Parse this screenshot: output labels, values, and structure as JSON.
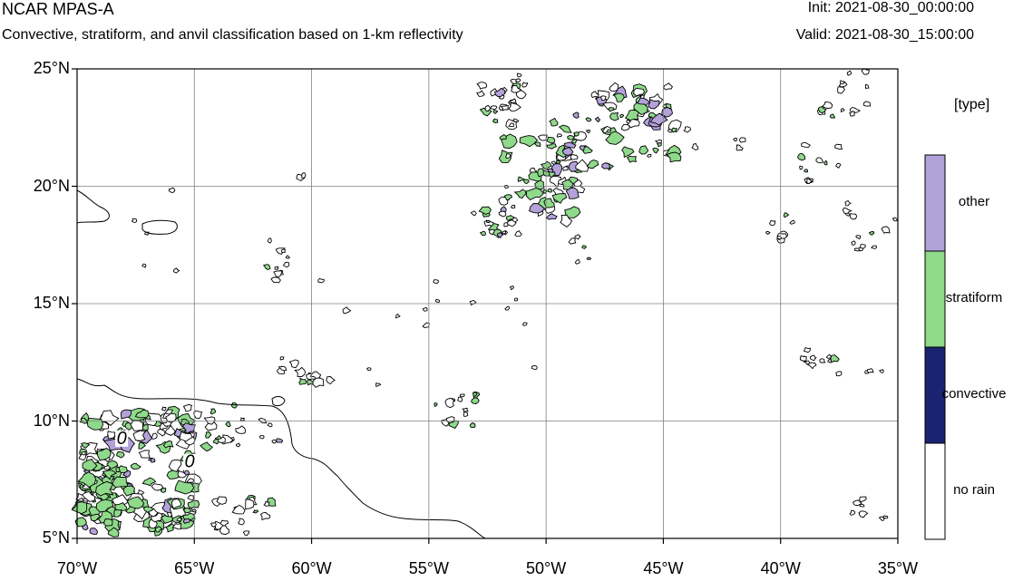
{
  "header": {
    "title": "NCAR MPAS-A",
    "subtitle": "Convective, stratiform, and anvil classification based on 1-km reflectivity",
    "init": "Init: 2021-08-30_00:00:00",
    "valid": "Valid: 2021-08-30_15:00:00"
  },
  "map": {
    "lat_range": [
      5,
      25
    ],
    "lon_range": [
      -70,
      -35
    ],
    "lat_ticks": [
      {
        "value": 25,
        "label": "25°N"
      },
      {
        "value": 20,
        "label": "20°N"
      },
      {
        "value": 15,
        "label": "15°N"
      },
      {
        "value": 10,
        "label": "10°N"
      },
      {
        "value": 5,
        "label": "5°N"
      }
    ],
    "lon_ticks": [
      {
        "value": -70,
        "label": "70°W"
      },
      {
        "value": -65,
        "label": "65°W"
      },
      {
        "value": -60,
        "label": "60°W"
      },
      {
        "value": -55,
        "label": "55°W"
      },
      {
        "value": -50,
        "label": "50°W"
      },
      {
        "value": -45,
        "label": "45°W"
      },
      {
        "value": -40,
        "label": "40°W"
      },
      {
        "value": -35,
        "label": "35°W"
      }
    ],
    "contour_labels": [
      {
        "lon": -68.1,
        "lat": 9.1,
        "text": "0"
      },
      {
        "lon": -65.2,
        "lat": 8.1,
        "text": "0"
      }
    ],
    "grid": true
  },
  "legend": {
    "title": "[type]",
    "items": [
      {
        "label": "other",
        "color": "#b3a1da"
      },
      {
        "label": "stratiform",
        "color": "#8fd98b"
      },
      {
        "label": "convective",
        "color": "#1a2370"
      },
      {
        "label": "no rain",
        "color": "#ffffff"
      }
    ]
  },
  "colors": {
    "other": "#b3a1da",
    "stratiform": "#8fd98b",
    "convective": "#1a2370",
    "outline": "#000000",
    "grid": "#808080"
  }
}
